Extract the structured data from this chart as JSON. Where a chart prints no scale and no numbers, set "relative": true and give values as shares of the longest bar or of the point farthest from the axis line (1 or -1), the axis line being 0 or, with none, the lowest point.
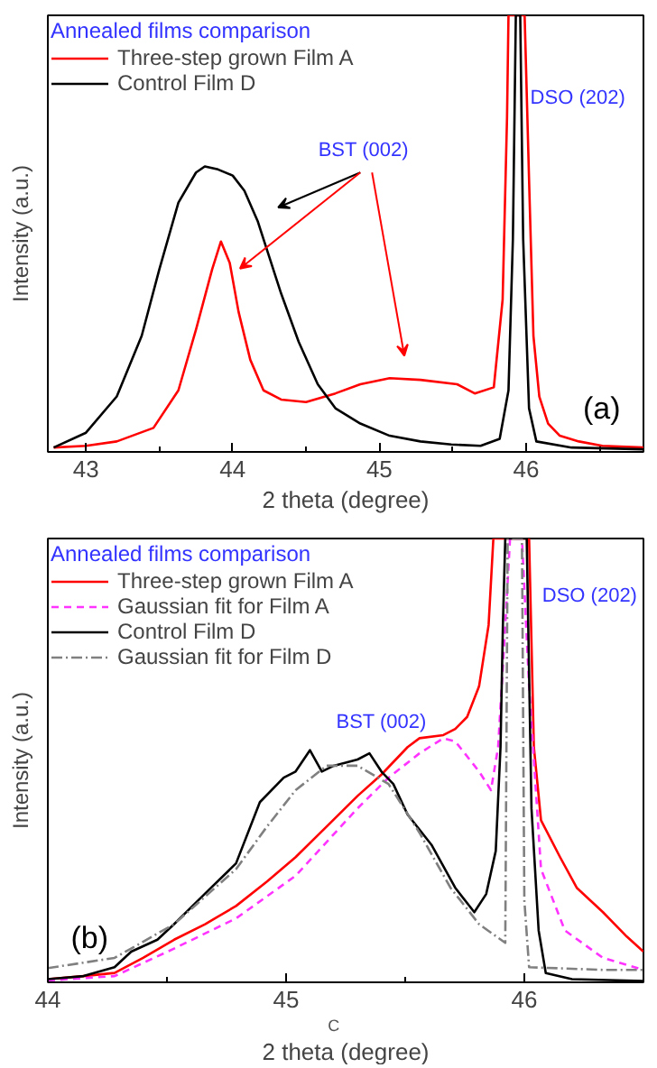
{
  "chart_data": [
    {
      "type": "line",
      "relative": true,
      "xlabel": "2 theta (degree)",
      "ylabel": "Intensity (a.u.)",
      "legend_title": "Annealed films comparison",
      "legend": "top left",
      "xlim": [
        42.74,
        46.8
      ],
      "xticks": [
        43,
        {
          "value": 43.5,
          "label": null
        },
        44,
        {
          "value": 44.5,
          "label": null
        },
        45,
        {
          "value": 45.5,
          "label": null
        },
        46,
        {
          "value": 46.5,
          "label": null
        }
      ],
      "annotations": [
        "BST (002)",
        "DSO (202)",
        "(a)"
      ],
      "series": [
        {
          "name": "Three-step grown Film A",
          "color": "#ff0000",
          "line_style": "solid",
          "x": [
            42.78,
            43.0,
            43.21,
            43.46,
            43.63,
            43.75,
            43.86,
            43.92,
            43.98,
            44.04,
            44.12,
            44.21,
            44.33,
            44.5,
            44.7,
            44.87,
            45.07,
            45.28,
            45.53,
            45.65,
            45.78,
            45.84,
            45.87,
            45.88,
            45.99,
            46.02,
            46.05,
            46.09,
            46.15,
            46.23,
            46.36,
            46.52,
            46.8
          ],
          "values": [
            0.01,
            0.014,
            0.024,
            0.055,
            0.141,
            0.28,
            0.418,
            0.482,
            0.433,
            0.321,
            0.211,
            0.141,
            0.12,
            0.114,
            0.134,
            0.155,
            0.169,
            0.165,
            0.155,
            0.134,
            0.148,
            0.349,
            0.765,
            1.0,
            1.0,
            0.626,
            0.266,
            0.127,
            0.065,
            0.037,
            0.024,
            0.014,
            0.01
          ]
        },
        {
          "name": "Control Film D",
          "color": "#000000",
          "line_style": "solid",
          "x": [
            42.78,
            43.0,
            43.21,
            43.38,
            43.5,
            43.63,
            43.75,
            43.81,
            43.9,
            44.0,
            44.08,
            44.17,
            44.25,
            44.33,
            44.45,
            44.58,
            44.7,
            44.87,
            45.07,
            45.28,
            45.49,
            45.69,
            45.82,
            45.88,
            45.91,
            45.93,
            45.96,
            45.98,
            46.02,
            46.07,
            46.31,
            46.8
          ],
          "values": [
            0.01,
            0.044,
            0.127,
            0.266,
            0.418,
            0.571,
            0.64,
            0.654,
            0.647,
            0.633,
            0.598,
            0.529,
            0.446,
            0.363,
            0.252,
            0.155,
            0.1,
            0.065,
            0.037,
            0.024,
            0.017,
            0.014,
            0.03,
            0.141,
            0.488,
            1.0,
            1.0,
            0.488,
            0.1,
            0.024,
            0.01,
            0.006
          ]
        }
      ]
    },
    {
      "type": "line",
      "relative": true,
      "xlabel": "2 theta (degree)",
      "ylabel": "Intensity (a.u.)",
      "legend_title": "Annealed films comparison",
      "legend": "top left",
      "xlim": [
        44.0,
        46.5
      ],
      "xticks": [
        44,
        {
          "value": 44.5,
          "label": null
        },
        45,
        {
          "value": 45.5,
          "label": null
        },
        46
      ],
      "annotations": [
        "BST (002)",
        "DSO (202)",
        "(b)",
        "C"
      ],
      "series": [
        {
          "name": "Three-step grown Film A",
          "color": "#ff0000",
          "line_style": "solid",
          "x": [
            44.0,
            44.15,
            44.28,
            44.4,
            44.53,
            44.66,
            44.79,
            44.92,
            45.04,
            45.17,
            45.3,
            45.4,
            45.51,
            45.56,
            45.66,
            45.71,
            45.76,
            45.81,
            45.85,
            45.87,
            46.02,
            46.04,
            46.07,
            46.15,
            46.22,
            46.33,
            46.43,
            46.5
          ],
          "values": [
            0.007,
            0.014,
            0.021,
            0.055,
            0.096,
            0.131,
            0.172,
            0.227,
            0.282,
            0.351,
            0.42,
            0.468,
            0.53,
            0.55,
            0.557,
            0.571,
            0.598,
            0.667,
            0.805,
            1.0,
            1.0,
            0.53,
            0.365,
            0.282,
            0.213,
            0.158,
            0.103,
            0.069
          ]
        },
        {
          "name": "Gaussian fit for Film A",
          "color": "#ff33ff",
          "line_style": "dashed",
          "x": [
            44.0,
            44.28,
            44.53,
            44.79,
            45.04,
            45.3,
            45.43,
            45.56,
            45.66,
            45.71,
            45.81,
            45.86,
            45.89,
            45.92,
            45.94,
            45.99,
            46.02,
            46.07,
            46.17,
            46.33,
            46.5
          ],
          "values": [
            0.004,
            0.014,
            0.076,
            0.144,
            0.24,
            0.392,
            0.461,
            0.516,
            0.55,
            0.543,
            0.475,
            0.433,
            0.53,
            0.805,
            1.0,
            1.0,
            0.667,
            0.255,
            0.117,
            0.055,
            0.028
          ]
        },
        {
          "name": "Control Film D",
          "color": "#000000",
          "line_style": "solid",
          "x": [
            44.0,
            44.15,
            44.28,
            44.35,
            44.46,
            44.53,
            44.66,
            44.79,
            44.89,
            44.99,
            45.04,
            45.1,
            45.15,
            45.2,
            45.3,
            45.35,
            45.4,
            45.45,
            45.51,
            45.61,
            45.71,
            45.79,
            45.84,
            45.88,
            45.9,
            45.91,
            45.92,
            46.01,
            46.03,
            46.06,
            46.09,
            46.2,
            46.5
          ],
          "values": [
            0.007,
            0.014,
            0.034,
            0.069,
            0.096,
            0.131,
            0.2,
            0.268,
            0.406,
            0.461,
            0.475,
            0.523,
            0.475,
            0.488,
            0.502,
            0.516,
            0.475,
            0.447,
            0.378,
            0.31,
            0.213,
            0.158,
            0.199,
            0.296,
            0.53,
            0.805,
            1.0,
            1.0,
            0.392,
            0.117,
            0.021,
            0.007,
            0.003
          ]
        },
        {
          "name": "Gaussian fit for Film D",
          "color": "#808080",
          "line_style": "dashdot",
          "x": [
            44.0,
            44.28,
            44.53,
            44.79,
            44.92,
            45.04,
            45.17,
            45.3,
            45.43,
            45.56,
            45.69,
            45.81,
            45.92,
            45.93,
            45.99,
            46.0,
            46.02,
            46.33,
            46.5
          ],
          "values": [
            0.032,
            0.055,
            0.131,
            0.255,
            0.351,
            0.433,
            0.488,
            0.488,
            0.447,
            0.337,
            0.213,
            0.131,
            0.089,
            1.0,
            1.0,
            0.185,
            0.034,
            0.028,
            0.028
          ]
        }
      ]
    }
  ]
}
